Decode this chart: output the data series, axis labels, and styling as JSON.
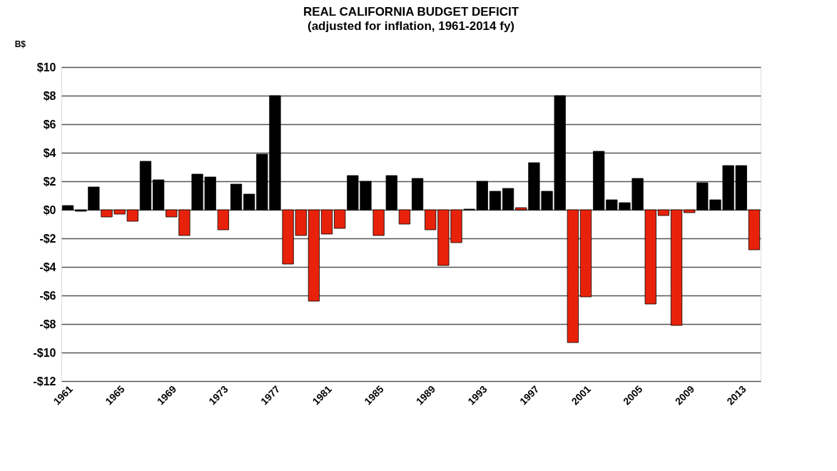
{
  "chart_data": {
    "type": "bar",
    "title": "REAL CALIFORNIA BUDGET DEFICIT",
    "subtitle": "(adjusted for inflation, 1961-2014 fy)",
    "ylabel": "B$",
    "categories": [
      "1961",
      null,
      null,
      null,
      "1965",
      null,
      null,
      null,
      "1969",
      null,
      null,
      null,
      "1973",
      null,
      null,
      null,
      "1977",
      null,
      null,
      null,
      "1981",
      null,
      null,
      null,
      "1985",
      null,
      null,
      null,
      "1989",
      null,
      null,
      null,
      "1993",
      null,
      null,
      null,
      "1997",
      null,
      null,
      null,
      "2001",
      null,
      null,
      null,
      "2005",
      null,
      null,
      null,
      "2009",
      null,
      null,
      null,
      "2013",
      null
    ],
    "values": [
      0.3,
      -0.1,
      1.6,
      -0.5,
      -0.3,
      -0.8,
      3.4,
      2.1,
      -0.5,
      -1.8,
      2.5,
      2.3,
      -1.4,
      1.8,
      1.1,
      3.9,
      8.0,
      -3.8,
      -1.8,
      -6.4,
      -1.7,
      -1.3,
      2.4,
      2.0,
      -1.8,
      2.4,
      -1.0,
      2.2,
      -1.4,
      -3.9,
      -2.3,
      0.05,
      2.0,
      1.3,
      1.5,
      0.15,
      3.3,
      1.3,
      8.0,
      -9.3,
      -6.1,
      4.1,
      0.7,
      0.5,
      2.2,
      -6.6,
      -0.4,
      -8.1,
      -0.2,
      1.9,
      0.7,
      3.1,
      3.1,
      -2.8
    ],
    "colors": [
      "#000000",
      "#000000",
      "#000000",
      "#e8220a",
      "#e8220a",
      "#e8220a",
      "#000000",
      "#000000",
      "#e8220a",
      "#e8220a",
      "#000000",
      "#000000",
      "#e8220a",
      "#000000",
      "#000000",
      "#000000",
      "#000000",
      "#e8220a",
      "#e8220a",
      "#e8220a",
      "#e8220a",
      "#e8220a",
      "#000000",
      "#000000",
      "#e8220a",
      "#000000",
      "#e8220a",
      "#000000",
      "#e8220a",
      "#e8220a",
      "#e8220a",
      "#000000",
      "#000000",
      "#000000",
      "#000000",
      "#e8220a",
      "#000000",
      "#000000",
      "#000000",
      "#e8220a",
      "#e8220a",
      "#000000",
      "#000000",
      "#000000",
      "#000000",
      "#e8220a",
      "#e8220a",
      "#e8220a",
      "#e8220a",
      "#000000",
      "#000000",
      "#000000",
      "#000000",
      "#e8220a"
    ],
    "ylim": [
      -12,
      10
    ],
    "yticks": [
      {
        "value": -12,
        "label": "-$12"
      },
      {
        "value": -10,
        "label": "-$10"
      },
      {
        "value": -8,
        "label": "-$8"
      },
      {
        "value": -6,
        "label": "-$6"
      },
      {
        "value": -4,
        "label": "-$4"
      },
      {
        "value": -2,
        "label": "-$2"
      },
      {
        "value": 0,
        "label": "$0"
      },
      {
        "value": 2,
        "label": "$2"
      },
      {
        "value": 4,
        "label": "$4"
      },
      {
        "value": 6,
        "label": "$6"
      },
      {
        "value": 8,
        "label": "$8"
      },
      {
        "value": 10,
        "label": "$10"
      }
    ],
    "grid": "y",
    "legend": false
  }
}
